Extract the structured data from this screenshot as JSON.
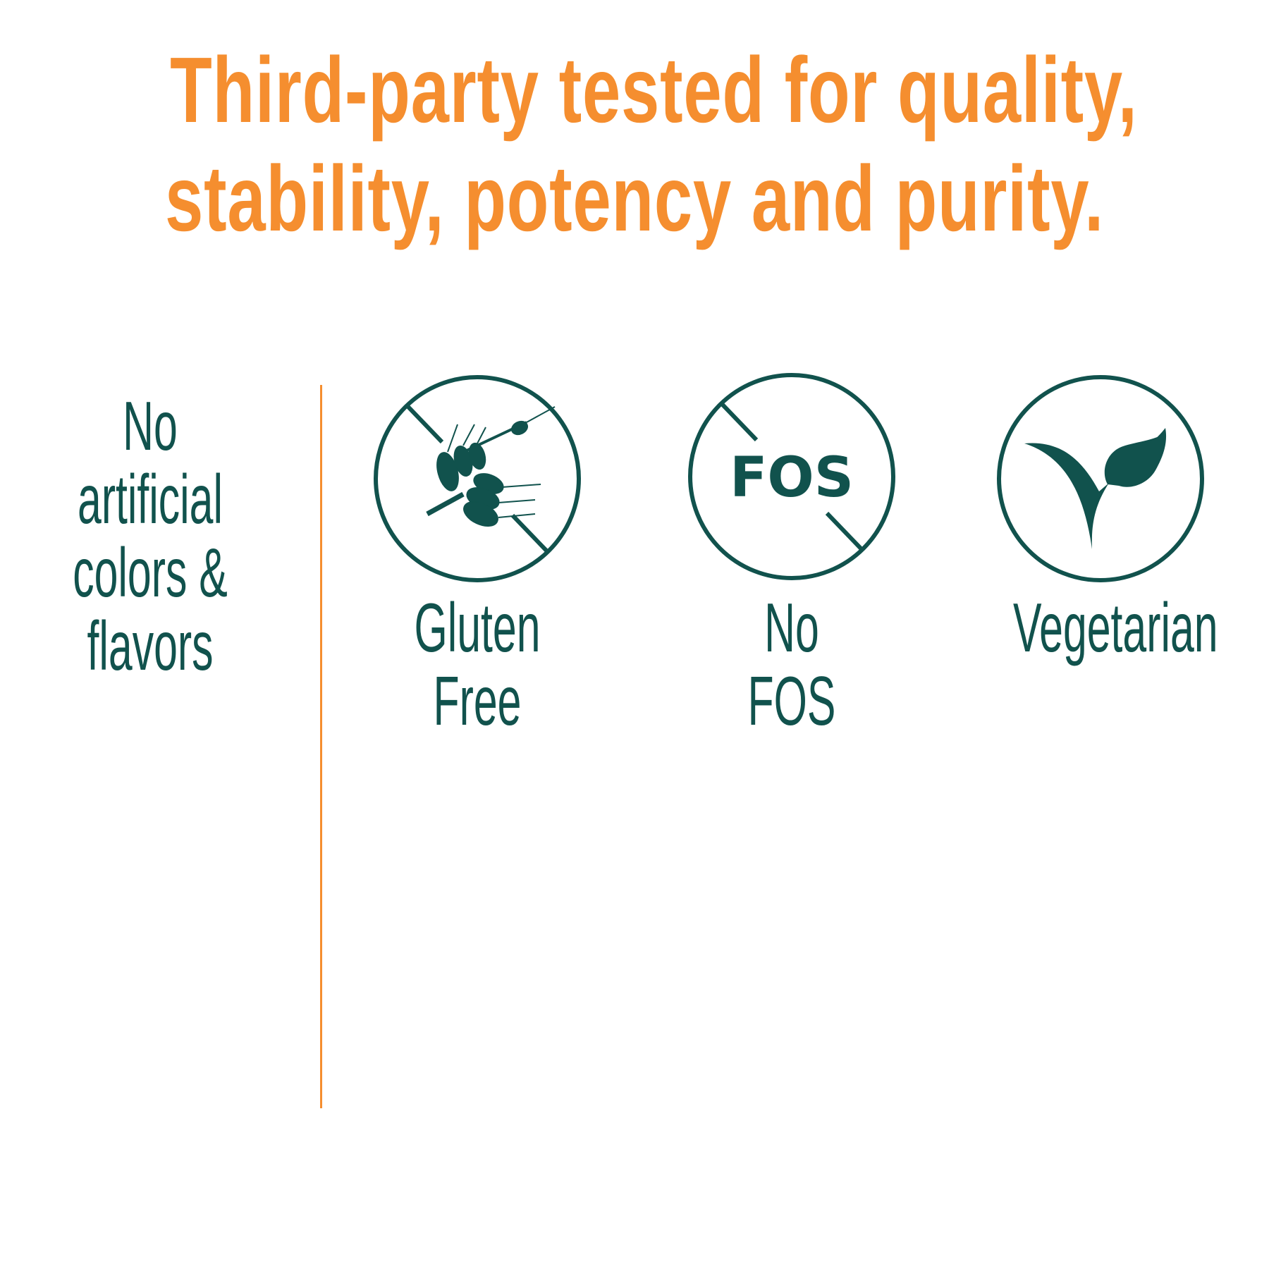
{
  "headline": {
    "line1": "Third-party tested for quality,",
    "line2": "stability, potency and purity."
  },
  "left_claim": {
    "lines": [
      "No",
      "artificial",
      "colors &",
      "flavors"
    ]
  },
  "badges": [
    {
      "icon": "no-wheat-icon",
      "lines": [
        "Gluten",
        "Free"
      ]
    },
    {
      "icon": "no-fos-icon",
      "icon_text": "FOS",
      "lines": [
        "No",
        "FOS"
      ]
    },
    {
      "icon": "leaf-sprout-icon",
      "lines": [
        "Vegetarian"
      ]
    }
  ],
  "colors": {
    "accent": "#F58E2F",
    "primary": "#11524D"
  }
}
